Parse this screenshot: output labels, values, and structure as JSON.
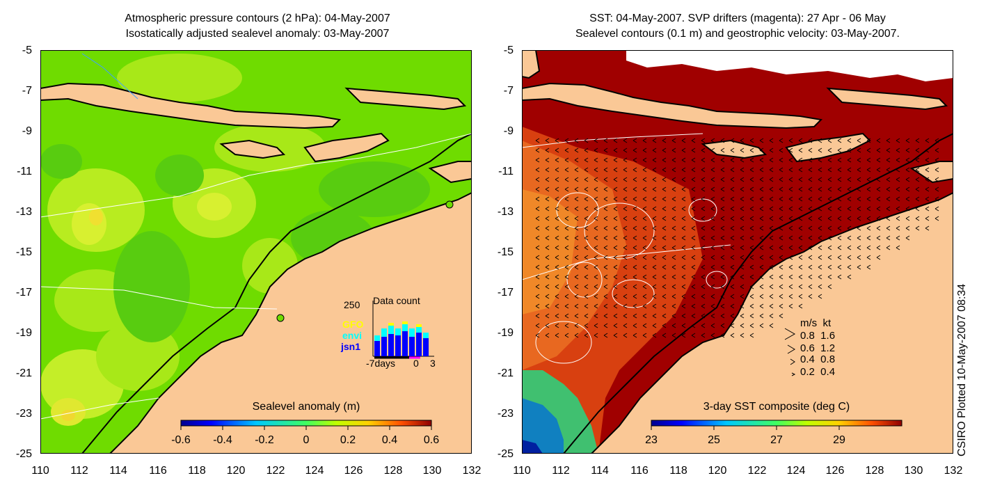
{
  "left": {
    "title_line1": "Atmospheric pressure contours (2 hPa): 04-May-2007",
    "title_line2": "Isostatically adjusted sealevel anomaly: 03-May-2007",
    "colorbar_title": "Sealevel anomaly (m)",
    "colorbar_ticks": [
      "-0.6",
      "-0.4",
      "-0.2",
      "0",
      "0.2",
      "0.4",
      "0.6"
    ],
    "data_count": {
      "title": "Data count",
      "ymax": "250",
      "series": [
        "GFO",
        "envi",
        "jsn1"
      ],
      "series_colors": [
        "#ffff00",
        "#00ffff",
        "#0000ff"
      ],
      "xlabel_left": "-7days",
      "xlabel_mid": "0",
      "xlabel_right": "3"
    }
  },
  "right": {
    "title_line1": "SST: 04-May-2007. SVP drifters (magenta): 27 Apr - 06 May",
    "title_line2": "Sealevel contours (0.1 m) and geostrophic velocity: 03-May-2007.",
    "colorbar_title": "3-day SST composite (deg C)",
    "colorbar_ticks": [
      "23",
      "25",
      "27",
      "29"
    ],
    "velocity_legend": {
      "header": "m/s  kt",
      "rows": [
        "0.8  1.6",
        "0.6  1.2",
        "0.4  0.8",
        "0.2  0.4"
      ]
    }
  },
  "y_ticks": [
    "-5",
    "-7",
    "-9",
    "-11",
    "-13",
    "-15",
    "-17",
    "-19",
    "-21",
    "-23",
    "-25"
  ],
  "x_ticks": [
    "110",
    "112",
    "114",
    "116",
    "118",
    "120",
    "122",
    "124",
    "126",
    "128",
    "130",
    "132"
  ],
  "stamp": "CSIRO Plotted 10-May-2007 08:34",
  "colors": {
    "land": "#fac896",
    "ocean_green": "#7fe000",
    "sst_hot": "#a00000"
  }
}
